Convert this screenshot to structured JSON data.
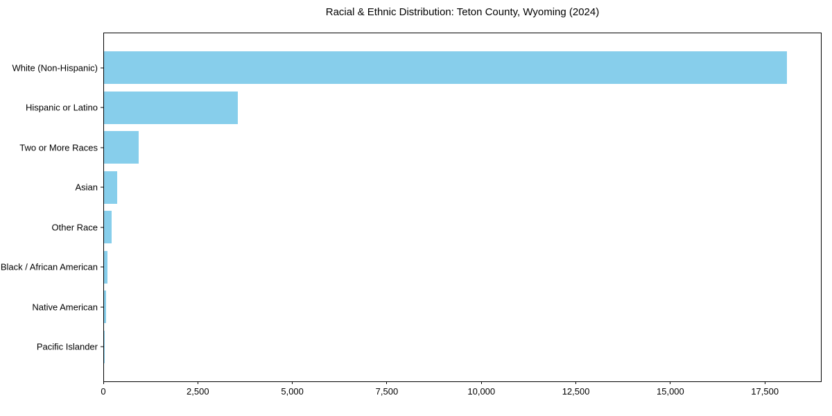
{
  "chart_data": {
    "type": "bar",
    "orientation": "horizontal",
    "title": "Racial & Ethnic Distribution: Teton County, Wyoming (2024)",
    "categories": [
      "White (Non-Hispanic)",
      "Hispanic or Latino",
      "Two or More Races",
      "Asian",
      "Other Race",
      "Black / African American",
      "Native American",
      "Pacific Islander"
    ],
    "values": [
      18100,
      3550,
      920,
      350,
      210,
      95,
      60,
      10
    ],
    "xlabel": "",
    "ylabel": "",
    "xlim": [
      0,
      19000
    ],
    "xticks": [
      0,
      2500,
      5000,
      7500,
      10000,
      12500,
      15000,
      17500
    ],
    "xtick_labels": [
      "0",
      "2,500",
      "5,000",
      "7,500",
      "10,000",
      "12,500",
      "15,000",
      "17,500"
    ],
    "bar_color": "#87CEEB",
    "axis_color": "#000000",
    "text_color": "#000000",
    "background_color": "#ffffff",
    "grid": false,
    "legend": null
  }
}
